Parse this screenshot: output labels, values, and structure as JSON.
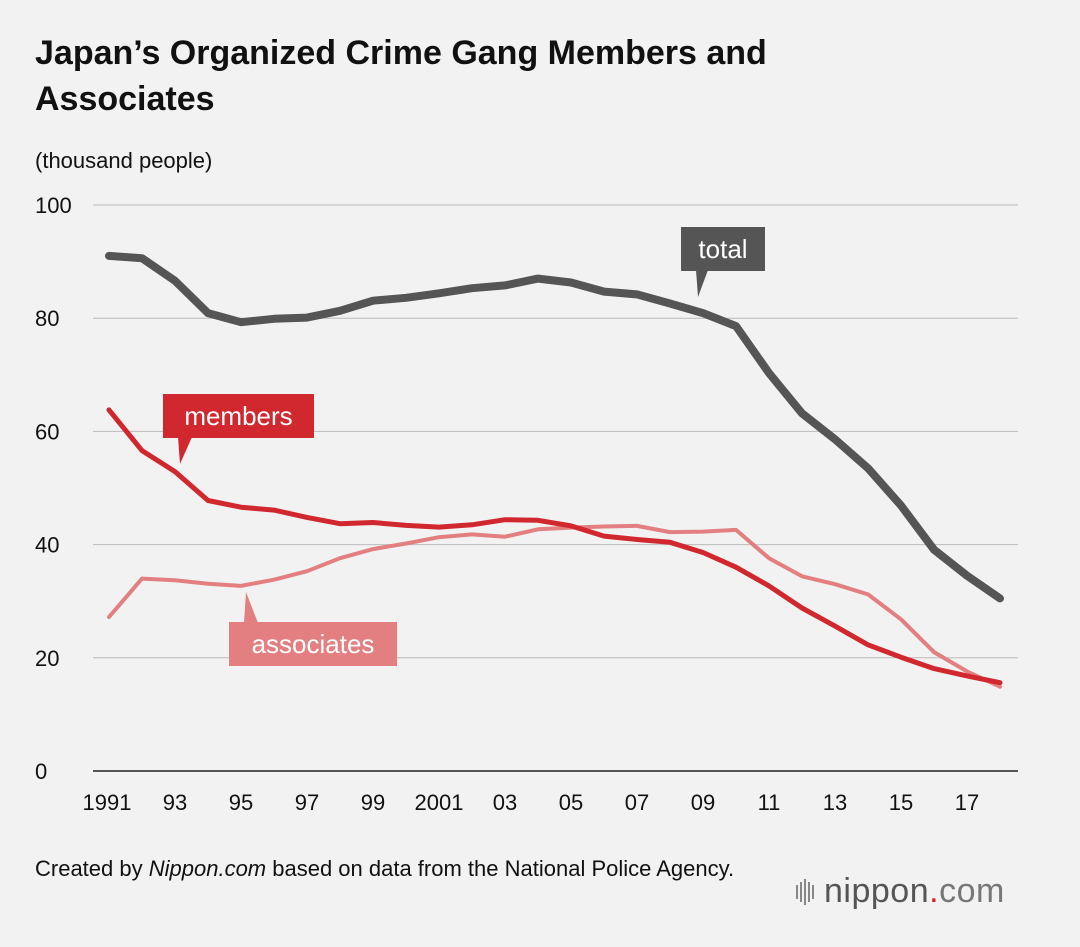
{
  "title": "Japan’s Organized Crime Gang Members and Associates",
  "unit_label": "(thousand people)",
  "footer": {
    "prefix": "Created by ",
    "source": "Nippon.com",
    "suffix": " based on data from the National Police Agency."
  },
  "logo": {
    "name": "nippon",
    "dot": ".",
    "tld": "com"
  },
  "colors": {
    "total": "#555555",
    "members": "#d0282e",
    "associates": "#e37f80",
    "grid": "#bbbbbb",
    "axis": "#222222"
  },
  "chart_data": {
    "type": "line",
    "title": "Japan’s Organized Crime Gang Members and Associates",
    "ylabel": "(thousand people)",
    "xlabel": "",
    "ylim": [
      0,
      100
    ],
    "yticks": [
      0,
      20,
      40,
      60,
      80,
      100
    ],
    "x": [
      1991,
      1992,
      1993,
      1994,
      1995,
      1996,
      1997,
      1998,
      1999,
      2000,
      2001,
      2002,
      2003,
      2004,
      2005,
      2006,
      2007,
      2008,
      2009,
      2010,
      2011,
      2012,
      2013,
      2014,
      2015,
      2016,
      2017,
      2018
    ],
    "xtick_values": [
      1991,
      1993,
      1995,
      1997,
      1999,
      2001,
      2003,
      2005,
      2007,
      2009,
      2011,
      2013,
      2015,
      2017
    ],
    "xtick_labels": [
      "1991",
      "93",
      "95",
      "97",
      "99",
      "2001",
      "03",
      "05",
      "07",
      "09",
      "11",
      "13",
      "15",
      "17"
    ],
    "series": [
      {
        "name": "total",
        "label": "total",
        "values": [
          91.0,
          90.6,
          86.6,
          80.9,
          79.3,
          79.9,
          80.1,
          81.3,
          83.1,
          83.6,
          84.4,
          85.3,
          85.8,
          87.0,
          86.3,
          84.7,
          84.2,
          82.6,
          80.9,
          78.6,
          70.3,
          63.2,
          58.6,
          53.5,
          46.9,
          39.1,
          34.5,
          30.5
        ]
      },
      {
        "name": "members",
        "label": "members",
        "values": [
          63.8,
          56.6,
          52.9,
          47.8,
          46.6,
          46.1,
          44.8,
          43.7,
          43.9,
          43.4,
          43.1,
          43.5,
          44.4,
          44.3,
          43.3,
          41.5,
          40.9,
          40.4,
          38.6,
          36.0,
          32.7,
          28.8,
          25.6,
          22.3,
          20.1,
          18.1,
          16.8,
          15.6
        ]
      },
      {
        "name": "associates",
        "label": "associates",
        "values": [
          27.2,
          34.0,
          33.7,
          33.1,
          32.7,
          33.8,
          35.3,
          37.6,
          39.2,
          40.2,
          41.3,
          41.8,
          41.4,
          42.7,
          43.0,
          43.2,
          43.3,
          42.2,
          42.3,
          42.6,
          37.6,
          34.4,
          33.0,
          31.2,
          26.8,
          21.0,
          17.6,
          14.9
        ]
      }
    ]
  }
}
